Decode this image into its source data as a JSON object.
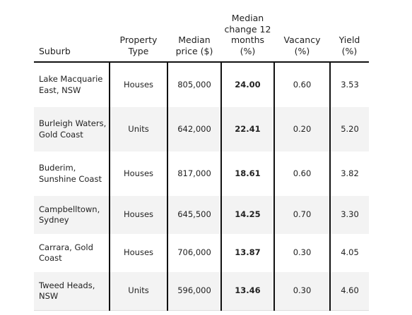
{
  "table": {
    "headers": {
      "suburb": "Suburb",
      "property_type": "Property Type",
      "median_price": "Median price ($)",
      "median_change": "Median change 12 months (%)",
      "vacancy": "Vacancy (%)",
      "yield": "Yield (%)"
    },
    "rows": [
      {
        "suburb": "Lake Macquarie East, NSW",
        "property_type": "Houses",
        "median_price": "805,000",
        "median_change": "24.00",
        "vacancy": "0.60",
        "yield": "3.53"
      },
      {
        "suburb": "Burleigh Waters, Gold Coast",
        "property_type": "Units",
        "median_price": "642,000",
        "median_change": "22.41",
        "vacancy": "0.20",
        "yield": "5.20"
      },
      {
        "suburb": "Buderim, Sunshine Coast",
        "property_type": "Houses",
        "median_price": "817,000",
        "median_change": "18.61",
        "vacancy": "0.60",
        "yield": "3.82"
      },
      {
        "suburb": "Campbelltown, Sydney",
        "property_type": "Houses",
        "median_price": "645,500",
        "median_change": "14.25",
        "vacancy": "0.70",
        "yield": "3.30"
      },
      {
        "suburb": "Carrara, Gold Coast",
        "property_type": "Houses",
        "median_price": "706,000",
        "median_change": "13.87",
        "vacancy": "0.30",
        "yield": "4.05"
      },
      {
        "suburb": "Tweed Heads, NSW",
        "property_type": "Units",
        "median_price": "596,000",
        "median_change": "13.46",
        "vacancy": "0.30",
        "yield": "4.60"
      }
    ]
  }
}
